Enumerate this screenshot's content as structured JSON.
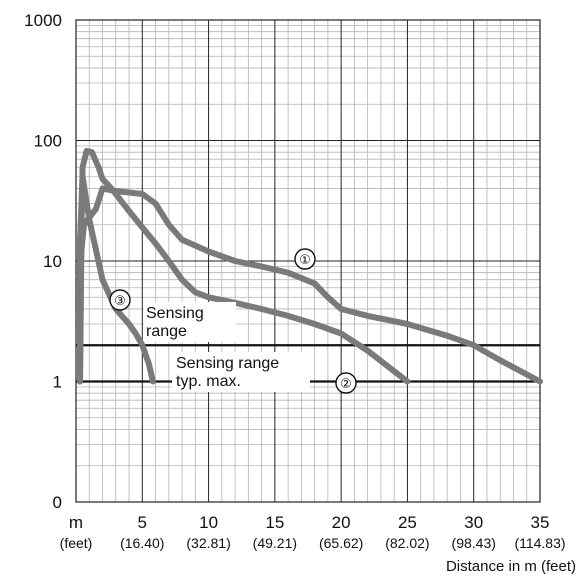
{
  "chart_data": {
    "type": "line",
    "title": "",
    "xlabel": "Distance in m (feet)",
    "ylabel": "",
    "xlim": [
      0,
      35
    ],
    "ylim_log": [
      0.1,
      1000
    ],
    "y_scale": "log",
    "grid": true,
    "x_ticks": [
      {
        "value": 0,
        "label": "m",
        "sublabel": "(feet)"
      },
      {
        "value": 5,
        "label": "5",
        "sublabel": "(16.40)"
      },
      {
        "value": 10,
        "label": "10",
        "sublabel": "(32.81)"
      },
      {
        "value": 15,
        "label": "15",
        "sublabel": "(49.21)"
      },
      {
        "value": 20,
        "label": "20",
        "sublabel": "(65.62)"
      },
      {
        "value": 25,
        "label": "25",
        "sublabel": "(82.02)"
      },
      {
        "value": 30,
        "label": "30",
        "sublabel": "(98.43)"
      },
      {
        "value": 35,
        "label": "35",
        "sublabel": "(114.83)"
      }
    ],
    "y_ticks": [
      {
        "value": 0.1,
        "label": "0"
      },
      {
        "value": 1,
        "label": "1"
      },
      {
        "value": 10,
        "label": "10"
      },
      {
        "value": 100,
        "label": "100"
      },
      {
        "value": 1000,
        "label": "1000"
      }
    ],
    "reference_lines": [
      {
        "y": 1,
        "label": "Sensing range typ. max."
      },
      {
        "y": 2,
        "label": "Sensing range"
      }
    ],
    "annotation_labels": {
      "sensing_range": [
        "Sensing",
        "range"
      ],
      "sensing_range_typ_max": [
        "Sensing range",
        "typ. max."
      ]
    },
    "series": [
      {
        "marker": "①",
        "color": "#7a7a7a",
        "x": [
          0.3,
          0.4,
          0.6,
          1.0,
          1.5,
          2.0,
          3.0,
          4.0,
          5.0,
          6.0,
          7.0,
          8.0,
          10.0,
          12.0,
          14.0,
          16.0,
          18.0,
          19.0,
          20.0,
          22.0,
          25.0,
          28.0,
          30.0,
          32.0,
          35.0
        ],
        "y": [
          1.0,
          12.0,
          20.0,
          23.0,
          27.0,
          40.0,
          38.0,
          37.0,
          36.0,
          30.0,
          20.0,
          15.0,
          12.0,
          10.0,
          9.0,
          8.0,
          6.5,
          5.0,
          4.0,
          3.5,
          3.0,
          2.4,
          2.0,
          1.5,
          1.0
        ]
      },
      {
        "marker": "②",
        "color": "#7a7a7a",
        "x": [
          0.3,
          0.4,
          0.5,
          0.8,
          1.2,
          1.7,
          2.0,
          2.5,
          3.0,
          4.0,
          5.0,
          6.0,
          7.0,
          8.0,
          9.0,
          10.0,
          12.0,
          14.0,
          16.0,
          18.0,
          20.0,
          22.0,
          25.0
        ],
        "y": [
          1.0,
          15.0,
          60.0,
          82.0,
          80.0,
          60.0,
          48.0,
          42.0,
          36.0,
          26.0,
          19.0,
          14.0,
          10.0,
          7.0,
          5.5,
          5.0,
          4.5,
          4.0,
          3.5,
          3.0,
          2.5,
          1.8,
          1.0
        ]
      },
      {
        "marker": "③",
        "color": "#7a7a7a",
        "x": [
          0.3,
          0.3,
          0.5,
          1.0,
          2.0,
          3.0,
          4.0,
          4.5,
          5.0,
          5.5,
          5.8
        ],
        "y": [
          1.0,
          15.0,
          50.0,
          22.0,
          7.0,
          4.0,
          3.0,
          2.5,
          2.0,
          1.4,
          1.0
        ]
      }
    ]
  }
}
